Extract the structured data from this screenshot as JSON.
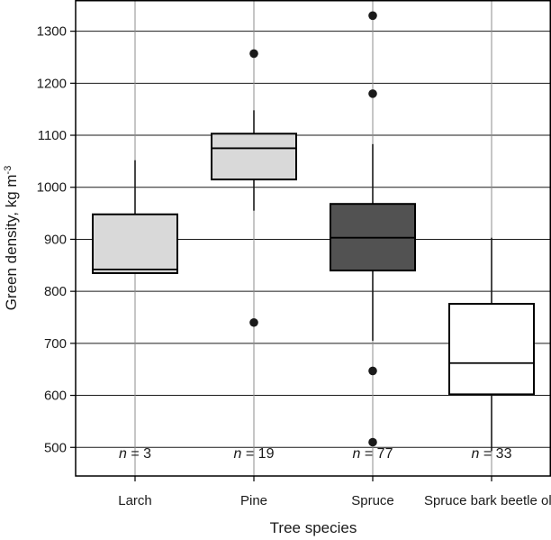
{
  "chart_data": {
    "type": "boxplot",
    "xlabel": "Tree species",
    "ylabel": "Green density, kg m",
    "ylabel_superscript": "-3",
    "ylim": [
      445,
      1360
    ],
    "yticks": [
      500,
      600,
      700,
      800,
      900,
      1000,
      1100,
      1200,
      1300
    ],
    "grid": true,
    "categories": [
      "Larch",
      "Pine",
      "Spruce",
      "Spruce bark beetle old"
    ],
    "boxes": [
      {
        "category": "Larch",
        "q1": 835,
        "median": 842,
        "q3": 948,
        "whisker_low": 835,
        "whisker_high": 1052,
        "outliers": [],
        "fill": "#d9d9d9",
        "n_label": "n = 3",
        "n_italic": "n",
        "n_value": " = 3"
      },
      {
        "category": "Pine",
        "q1": 1015,
        "median": 1075,
        "q3": 1103,
        "whisker_low": 955,
        "whisker_high": 1148,
        "outliers": [
          740,
          1257
        ],
        "fill": "#d9d9d9",
        "n_label": "n = 19",
        "n_italic": "n",
        "n_value": " = 19"
      },
      {
        "category": "Spruce",
        "q1": 840,
        "median": 903,
        "q3": 968,
        "whisker_low": 705,
        "whisker_high": 1083,
        "outliers": [
          510,
          647,
          1180,
          1330
        ],
        "fill": "#525252",
        "n_label": "n = 77",
        "n_italic": "n",
        "n_value": " = 77"
      },
      {
        "category": "Spruce bark beetle old",
        "q1": 602,
        "median": 662,
        "q3": 776,
        "whisker_low": 493,
        "whisker_high": 903,
        "outliers": [],
        "fill": "#ffffff",
        "n_label": "n = 33",
        "n_italic": "n",
        "n_value": " = 33"
      }
    ]
  }
}
